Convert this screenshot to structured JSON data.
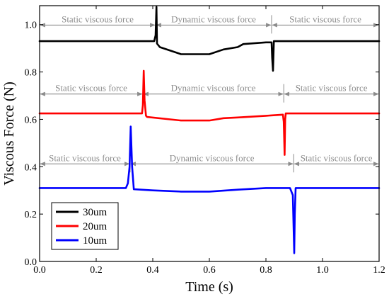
{
  "chart_data": {
    "type": "line",
    "xlabel": "Time (s)",
    "ylabel": "Viscous Force (N)",
    "xlim": [
      0.0,
      1.2
    ],
    "ylim": [
      0.0,
      1.08
    ],
    "xticks": [
      0.0,
      0.2,
      0.4,
      0.6,
      0.8,
      1.0,
      1.2
    ],
    "xtick_labels": [
      "0.0",
      "0.2",
      "0.4",
      "0.6",
      "0.8",
      "1.0",
      "1.2"
    ],
    "yticks": [
      0.0,
      0.2,
      0.4,
      0.6,
      0.8,
      1.0
    ],
    "ytick_labels": [
      "0.0",
      "0.2",
      "0.4",
      "0.6",
      "0.8",
      "1.0"
    ],
    "grid": false,
    "legend_position": "bottom-left",
    "series": [
      {
        "name": "30um",
        "color": "#000000",
        "x": [
          0.0,
          0.405,
          0.41,
          0.413,
          0.415,
          0.425,
          0.5,
          0.6,
          0.65,
          0.7,
          0.72,
          0.8,
          0.82,
          0.822,
          0.825,
          0.828,
          1.2
        ],
        "y": [
          0.93,
          0.93,
          0.955,
          1.075,
          0.92,
          0.905,
          0.875,
          0.875,
          0.895,
          0.905,
          0.918,
          0.925,
          0.925,
          0.86,
          0.805,
          0.93,
          0.93
        ]
      },
      {
        "name": "20um",
        "color": "#ff0000",
        "x": [
          0.0,
          0.362,
          0.365,
          0.368,
          0.371,
          0.376,
          0.38,
          0.5,
          0.6,
          0.65,
          0.7,
          0.8,
          0.86,
          0.863,
          0.866,
          0.868,
          0.87,
          1.2
        ],
        "y": [
          0.625,
          0.625,
          0.66,
          0.805,
          0.68,
          0.615,
          0.61,
          0.595,
          0.595,
          0.605,
          0.608,
          0.615,
          0.62,
          0.59,
          0.45,
          0.6,
          0.625,
          0.625
        ]
      },
      {
        "name": "10um",
        "color": "#0000ff",
        "x": [
          0.0,
          0.305,
          0.312,
          0.318,
          0.322,
          0.327,
          0.333,
          0.4,
          0.5,
          0.6,
          0.7,
          0.8,
          0.885,
          0.895,
          0.9,
          0.902,
          0.905,
          0.91,
          1.2
        ],
        "y": [
          0.31,
          0.31,
          0.33,
          0.4,
          0.57,
          0.4,
          0.305,
          0.3,
          0.295,
          0.295,
          0.303,
          0.31,
          0.31,
          0.28,
          0.035,
          0.2,
          0.31,
          0.31,
          0.31
        ]
      }
    ],
    "annotations": [
      {
        "row": "30um",
        "y": 0.998,
        "segments": [
          {
            "label": "Static viscous force",
            "x0": 0.0,
            "x1": 0.41
          },
          {
            "label": "Dynamic viscous force",
            "x0": 0.41,
            "x1": 0.82
          },
          {
            "label": "Static viscous force",
            "x0": 0.82,
            "x1": 1.2
          }
        ]
      },
      {
        "row": "20um",
        "y": 0.707,
        "segments": [
          {
            "label": "Static viscous force",
            "x0": 0.0,
            "x1": 0.365
          },
          {
            "label": "Dynamic viscous force",
            "x0": 0.365,
            "x1": 0.863
          },
          {
            "label": "Static viscous force",
            "x0": 0.863,
            "x1": 1.2
          }
        ]
      },
      {
        "row": "10um",
        "y": 0.412,
        "segments": [
          {
            "label": "Static viscous force",
            "x0": 0.0,
            "x1": 0.32
          },
          {
            "label": "Dynamic viscous force",
            "x0": 0.32,
            "x1": 0.898
          },
          {
            "label": "Static viscous force",
            "x0": 0.898,
            "x1": 1.2
          }
        ]
      }
    ]
  }
}
